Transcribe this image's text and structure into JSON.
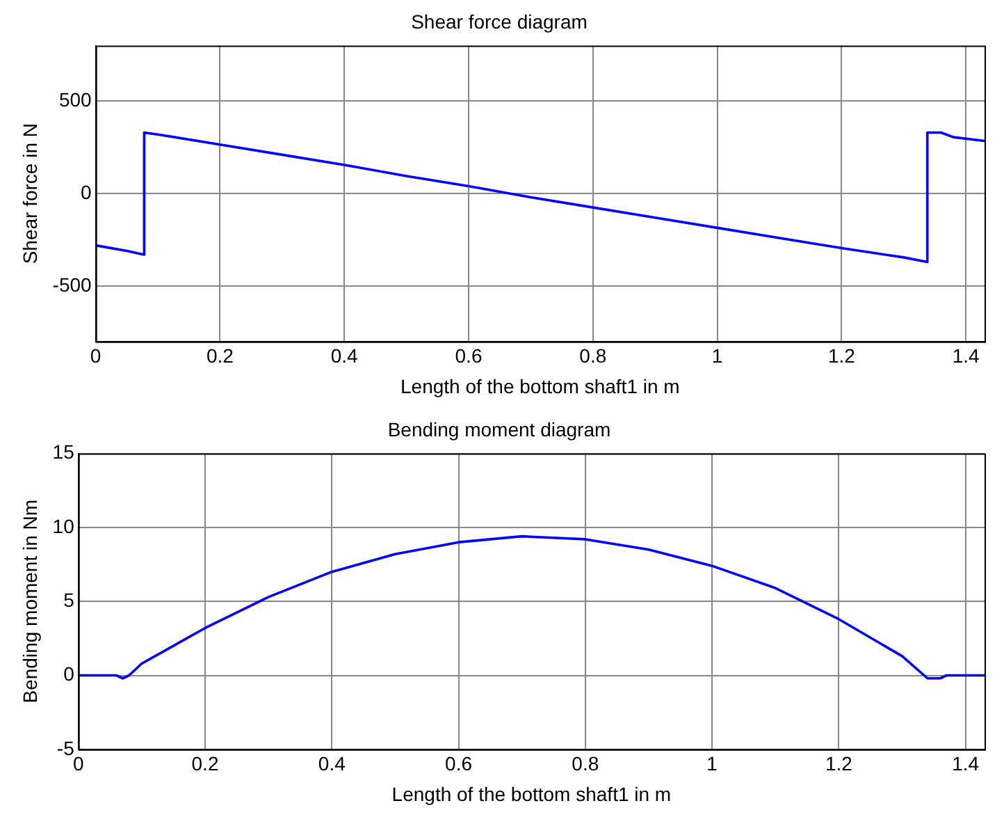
{
  "chart_data": [
    {
      "type": "line",
      "title": "Shear force diagram",
      "xlabel": "Length of the bottom shaft1 in m",
      "ylabel": "Shear force in N",
      "xlim": [
        0,
        1.43
      ],
      "xticks": [
        0,
        0.2,
        0.4,
        0.6,
        0.8,
        1,
        1.2,
        1.4
      ],
      "ylim": [
        -800,
        800
      ],
      "yticks": [
        -500,
        0,
        500
      ],
      "grid": true,
      "legend": false,
      "marker": "none",
      "line_style": "solid",
      "series": [
        {
          "color": "#0000ff",
          "x": [
            0,
            0.05,
            0.078,
            0.078,
            0.1,
            0.2,
            0.3,
            0.4,
            0.5,
            0.6,
            0.7,
            0.8,
            0.9,
            1.0,
            1.1,
            1.2,
            1.3,
            1.338,
            1.338,
            1.36,
            1.38,
            1.43
          ],
          "values": [
            -280,
            -310,
            -330,
            330,
            320,
            265,
            210,
            155,
            95,
            40,
            -20,
            -75,
            -130,
            -185,
            -240,
            -295,
            -345,
            -370,
            330,
            330,
            305,
            285
          ]
        }
      ]
    },
    {
      "type": "line",
      "title": "Bending moment diagram",
      "xlabel": "Length of the bottom shaft1 in m",
      "ylabel": "Bending moment in Nm",
      "xlim": [
        0,
        1.43
      ],
      "xticks": [
        0,
        0.2,
        0.4,
        0.6,
        0.8,
        1,
        1.2,
        1.4
      ],
      "ylim": [
        -5,
        15
      ],
      "yticks": [
        -5,
        0,
        5,
        10,
        15
      ],
      "grid": true,
      "legend": false,
      "marker": "none",
      "line_style": "solid",
      "series": [
        {
          "color": "#0000ff",
          "x": [
            0,
            0.06,
            0.07,
            0.08,
            0.1,
            0.2,
            0.3,
            0.4,
            0.5,
            0.6,
            0.7,
            0.8,
            0.9,
            1.0,
            1.1,
            1.2,
            1.3,
            1.34,
            1.36,
            1.37,
            1.43
          ],
          "values": [
            0,
            0,
            -0.2,
            0,
            0.8,
            3.2,
            5.3,
            7.0,
            8.2,
            9.0,
            9.4,
            9.2,
            8.5,
            7.4,
            5.9,
            3.8,
            1.3,
            -0.2,
            -0.2,
            0,
            0
          ]
        }
      ]
    }
  ]
}
